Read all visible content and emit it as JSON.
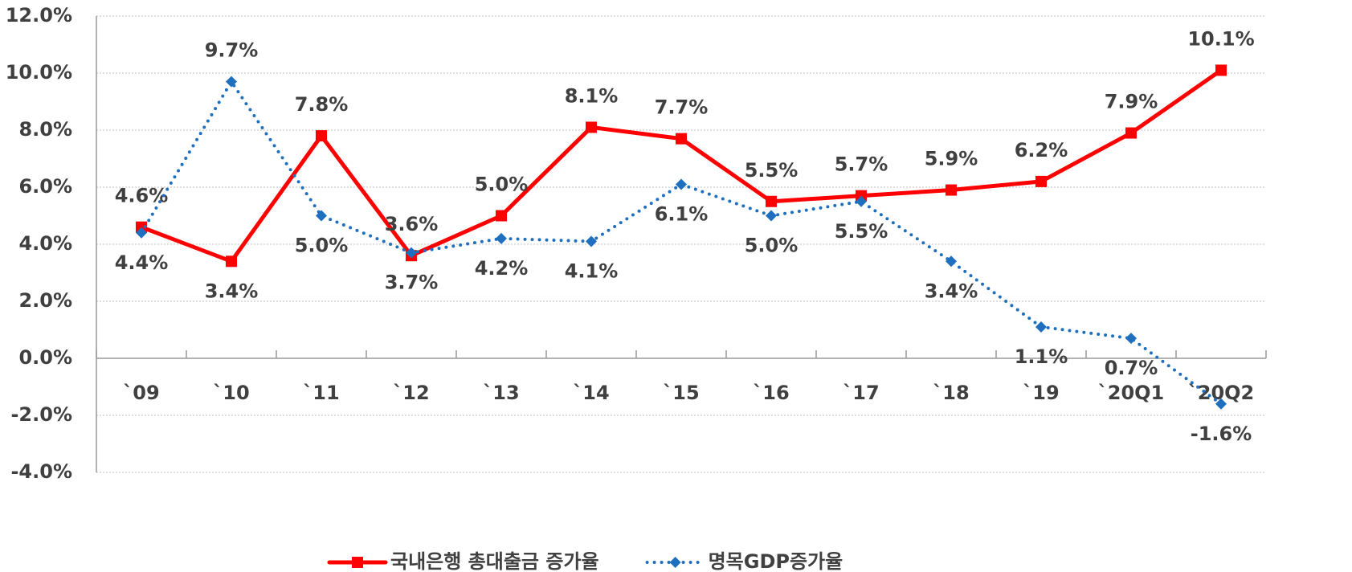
{
  "chart_data": {
    "type": "line",
    "categories": [
      "`09",
      "`10",
      "`11",
      "`12",
      "`13",
      "`14",
      "`15",
      "`16",
      "`17",
      "`18",
      "`19",
      "`20Q1",
      "`20Q2"
    ],
    "series": [
      {
        "name": "국내은행 총대출금 증가율",
        "color": "#ff0000",
        "marker": "square",
        "dash": "solid",
        "values": [
          4.6,
          3.4,
          7.8,
          3.6,
          5.0,
          8.1,
          7.7,
          5.5,
          5.7,
          5.9,
          6.2,
          7.9,
          10.1
        ],
        "value_labels": [
          "4.6%",
          "3.4%",
          "7.8%",
          "3.6%",
          "5.0%",
          "8.1%",
          "7.7%",
          "5.5%",
          "5.7%",
          "5.9%",
          "6.2%",
          "7.9%",
          "10.1%"
        ]
      },
      {
        "name": "명목GDP증가율",
        "color": "#1f6fbf",
        "marker": "diamond",
        "dash": "dotted",
        "values": [
          4.4,
          9.7,
          5.0,
          3.7,
          4.2,
          4.1,
          6.1,
          5.0,
          5.5,
          3.4,
          1.1,
          0.7,
          -1.6
        ],
        "value_labels": [
          "4.4%",
          "9.7%",
          "5.0%",
          "3.7%",
          "4.2%",
          "4.1%",
          "6.1%",
          "5.0%",
          "5.5%",
          "3.4%",
          "1.1%",
          "0.7%",
          "-1.6%"
        ]
      }
    ],
    "ylim": [
      -4,
      12
    ],
    "yticks": [
      {
        "value": -4,
        "label": "-4.0%"
      },
      {
        "value": -2,
        "label": "-2.0%"
      },
      {
        "value": 0,
        "label": "0.0%"
      },
      {
        "value": 2,
        "label": "2.0%"
      },
      {
        "value": 4,
        "label": "4.0%"
      },
      {
        "value": 6,
        "label": "6.0%"
      },
      {
        "value": 8,
        "label": "8.0%"
      },
      {
        "value": 10,
        "label": "10.0%"
      },
      {
        "value": 12,
        "label": "12.0%"
      }
    ],
    "grid": true,
    "legend": "bottom"
  }
}
